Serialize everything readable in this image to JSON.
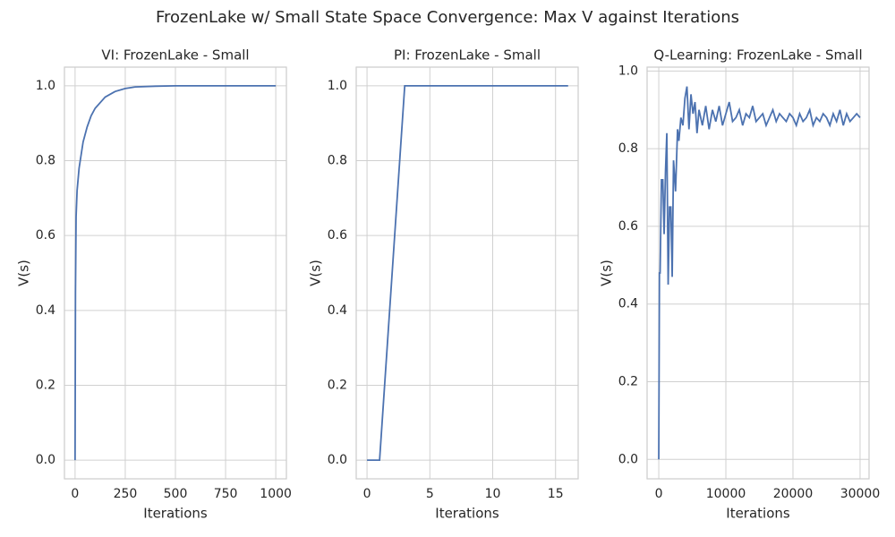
{
  "title": "FrozenLake w/ Small State Space Convergence: Max V against Iterations",
  "chart_data": [
    {
      "type": "line",
      "title": "VI: FrozenLake - Small",
      "x_label": "Iterations",
      "y_label": "V(s)",
      "color": "#4c72b0",
      "grid": true,
      "x": [
        0,
        2,
        5,
        10,
        20,
        40,
        60,
        80,
        100,
        150,
        200,
        250,
        300,
        400,
        500,
        1000
      ],
      "values": [
        0,
        0.45,
        0.65,
        0.72,
        0.78,
        0.85,
        0.89,
        0.92,
        0.94,
        0.97,
        0.985,
        0.993,
        0.997,
        0.999,
        1,
        1
      ],
      "xlim": [
        -53,
        1053
      ],
      "ylim": [
        -0.05,
        1.05
      ],
      "xticks": [
        0,
        250,
        500,
        750,
        1000
      ],
      "yticks": [
        {
          "value": 0,
          "label": "0.0"
        },
        0.2,
        0.4,
        0.6,
        0.8,
        {
          "value": 1,
          "label": "1.0"
        }
      ]
    },
    {
      "type": "line",
      "title": "PI: FrozenLake - Small",
      "x_label": "Iterations",
      "y_label": "V(s)",
      "color": "#4c72b0",
      "grid": true,
      "x": [
        0,
        1,
        2,
        3,
        4,
        5,
        6,
        7,
        8,
        9,
        10,
        11,
        12,
        13,
        14,
        15,
        16
      ],
      "values": [
        0,
        0,
        0.5,
        1,
        1,
        1,
        1,
        1,
        1,
        1,
        1,
        1,
        1,
        1,
        1,
        1,
        1
      ],
      "xlim": [
        -0.86,
        16.8
      ],
      "ylim": [
        -0.05,
        1.05
      ],
      "xticks": [
        0,
        5,
        10,
        15
      ],
      "yticks": [
        {
          "value": 0,
          "label": "0.0"
        },
        0.2,
        0.4,
        0.6,
        0.8,
        {
          "value": 1,
          "label": "1.0"
        }
      ]
    },
    {
      "type": "line",
      "title": "Q-Learning: FrozenLake - Small",
      "x_label": "Iterations",
      "y_label": "V(s)",
      "color": "#4c72b0",
      "grid": true,
      "x": [
        0,
        100,
        200,
        400,
        600,
        800,
        1000,
        1200,
        1400,
        1600,
        1800,
        2000,
        2200,
        2500,
        2800,
        3000,
        3300,
        3600,
        3900,
        4200,
        4500,
        4800,
        5100,
        5400,
        5700,
        6000,
        6500,
        7000,
        7500,
        8000,
        8500,
        9000,
        9500,
        10000,
        10500,
        11000,
        11500,
        12000,
        12500,
        13000,
        13500,
        14000,
        14500,
        15000,
        15500,
        16000,
        16500,
        17000,
        17500,
        18000,
        18500,
        19000,
        19500,
        20000,
        20500,
        21000,
        21500,
        22000,
        22500,
        23000,
        23500,
        24000,
        24500,
        25000,
        25500,
        26000,
        26500,
        27000,
        27500,
        28000,
        28500,
        29000,
        29500,
        30000
      ],
      "values": [
        0,
        0.48,
        0.48,
        0.72,
        0.72,
        0.58,
        0.74,
        0.84,
        0.45,
        0.65,
        0.65,
        0.47,
        0.77,
        0.69,
        0.85,
        0.82,
        0.88,
        0.86,
        0.93,
        0.96,
        0.85,
        0.94,
        0.89,
        0.92,
        0.84,
        0.9,
        0.86,
        0.91,
        0.85,
        0.9,
        0.87,
        0.91,
        0.86,
        0.89,
        0.92,
        0.87,
        0.88,
        0.9,
        0.86,
        0.89,
        0.88,
        0.91,
        0.87,
        0.88,
        0.89,
        0.86,
        0.88,
        0.9,
        0.87,
        0.89,
        0.88,
        0.87,
        0.89,
        0.88,
        0.86,
        0.89,
        0.87,
        0.88,
        0.9,
        0.86,
        0.88,
        0.87,
        0.89,
        0.88,
        0.86,
        0.89,
        0.87,
        0.9,
        0.86,
        0.89,
        0.87,
        0.88,
        0.89,
        0.88
      ],
      "xlim": [
        -1741,
        31339
      ],
      "ylim": [
        -0.05,
        1.01
      ],
      "xticks": [
        0,
        10000,
        20000,
        30000
      ],
      "yticks": [
        {
          "value": 0,
          "label": "0.0"
        },
        0.2,
        0.4,
        0.6,
        0.8,
        {
          "value": 1,
          "label": "1.0"
        }
      ]
    }
  ]
}
